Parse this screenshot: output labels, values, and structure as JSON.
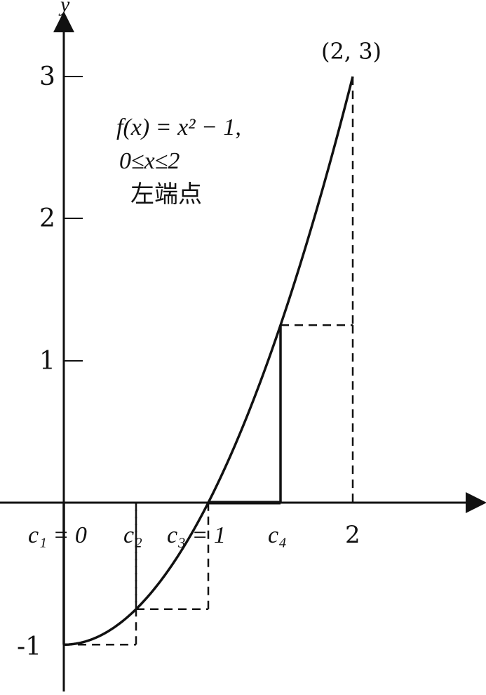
{
  "chart_data": {
    "type": "line",
    "title": "",
    "xlabel": "",
    "ylabel": "y",
    "xlim": [
      0,
      2
    ],
    "ylim": [
      -1,
      3
    ],
    "yticks": [
      "3",
      "2",
      "1",
      "-1"
    ],
    "function": {
      "formula_line1": "f(x) = x² − 1,",
      "formula_line2": "0≤x≤2",
      "formula_line3": "左端点",
      "samples": [
        {
          "x": 0.0,
          "y": -1.0
        },
        {
          "x": 0.25,
          "y": -0.9375
        },
        {
          "x": 0.5,
          "y": -0.75
        },
        {
          "x": 0.75,
          "y": -0.4375
        },
        {
          "x": 1.0,
          "y": 0.0
        },
        {
          "x": 1.25,
          "y": 0.5625
        },
        {
          "x": 1.5,
          "y": 1.25
        },
        {
          "x": 1.75,
          "y": 2.0625
        },
        {
          "x": 2.0,
          "y": 3.0
        }
      ]
    },
    "x_labels": [
      {
        "x": 0.0,
        "text": "c₁ = 0"
      },
      {
        "x": 0.5,
        "text": "c₂"
      },
      {
        "x": 1.0,
        "text": "c₃ = 1"
      },
      {
        "x": 1.5,
        "text": "c₄"
      },
      {
        "x": 2.0,
        "text": "2"
      }
    ],
    "left_endpoint_rectangles": [
      {
        "x0": 0.0,
        "x1": 0.5,
        "height": -1.0
      },
      {
        "x0": 0.5,
        "x1": 1.0,
        "height": -0.75
      },
      {
        "x0": 1.0,
        "x1": 1.5,
        "height": 0.0
      },
      {
        "x0": 1.5,
        "x1": 2.0,
        "height": 1.25
      }
    ],
    "endpoint_annotation": {
      "x": 2,
      "y": 3,
      "text": "(2, 3)"
    }
  }
}
